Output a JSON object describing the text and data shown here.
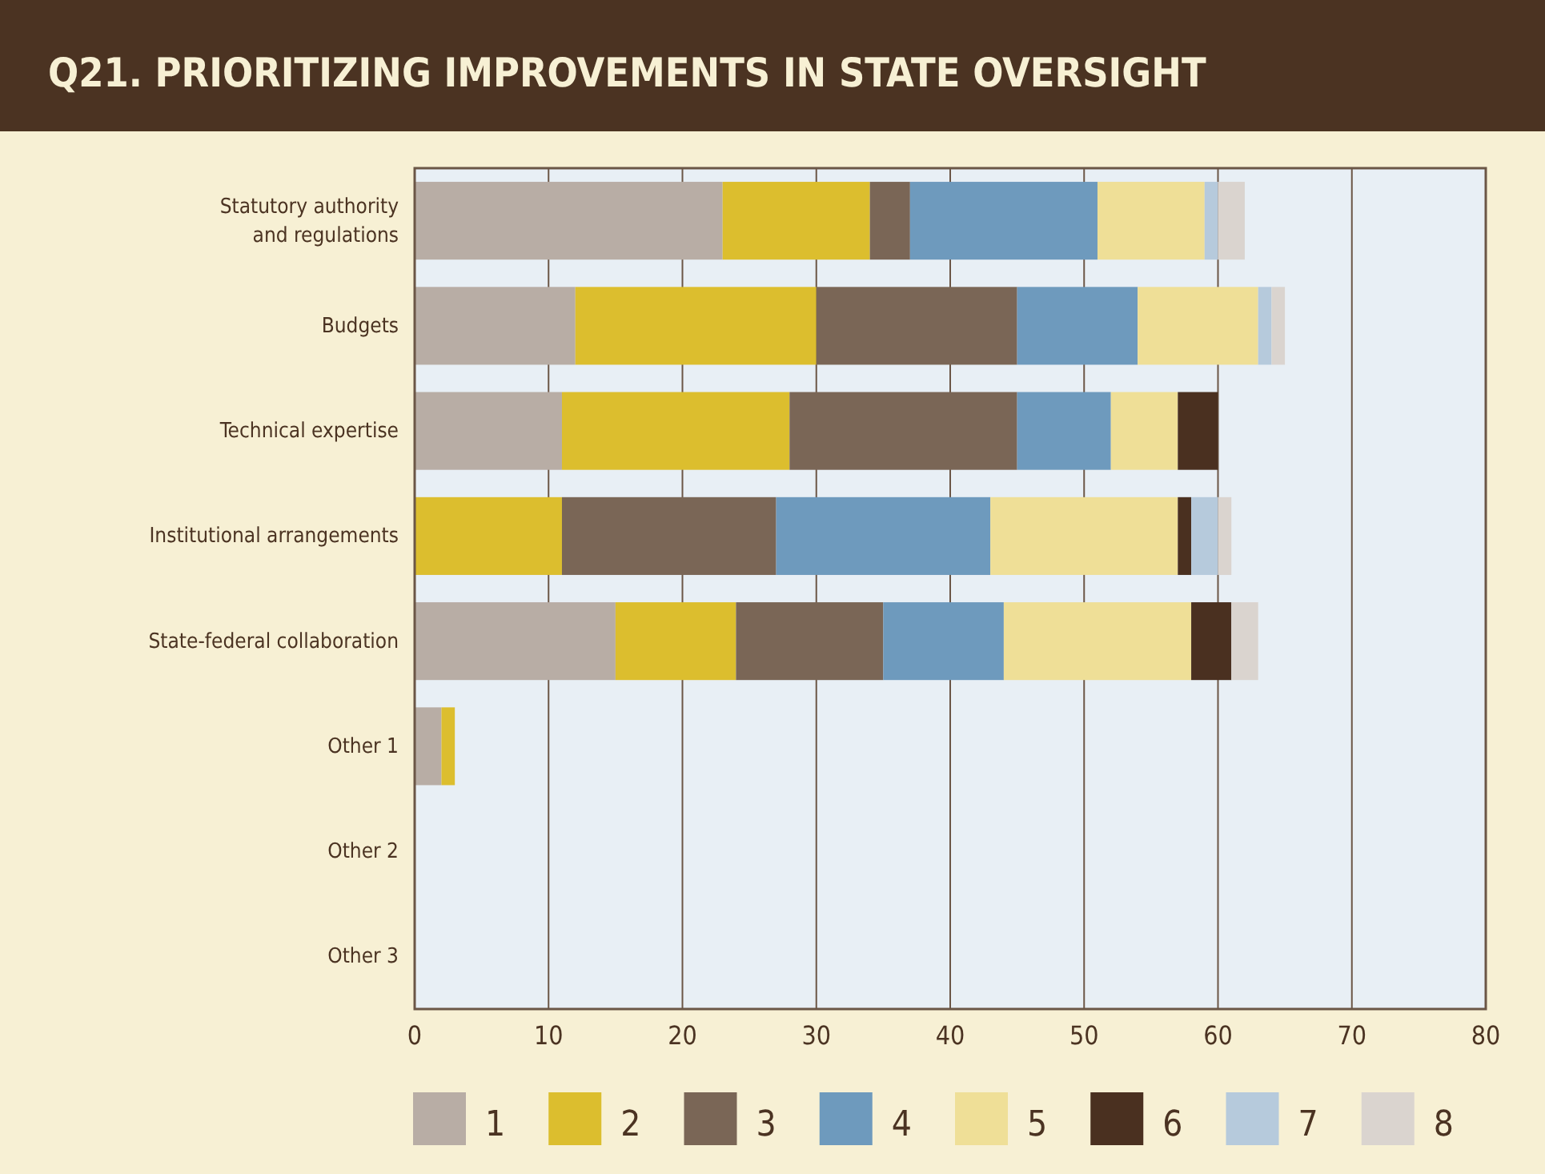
{
  "chart_data": {
    "type": "bar",
    "orientation": "horizontal",
    "stacked": true,
    "title": "Q21. PRIORITIZING IMPROVEMENTS IN STATE OVERSIGHT",
    "categories": [
      "Statutory authority\nand regulations",
      "Budgets",
      "Technical expertise",
      "Institutional arrangements",
      "State-federal collaboration",
      "Other 1",
      "Other 2",
      "Other 3"
    ],
    "series": [
      {
        "name": "1",
        "color": "#b8ada5",
        "values": [
          23,
          12,
          11,
          0,
          15,
          2,
          0,
          0
        ]
      },
      {
        "name": "2",
        "color": "#dcbe2e",
        "values": [
          11,
          18,
          17,
          11,
          9,
          1,
          0,
          0
        ]
      },
      {
        "name": "3",
        "color": "#7a6656",
        "values": [
          3,
          15,
          17,
          16,
          11,
          0,
          0,
          0
        ]
      },
      {
        "name": "4",
        "color": "#6e9abd",
        "values": [
          14,
          9,
          7,
          16,
          9,
          0,
          0,
          0
        ]
      },
      {
        "name": "5",
        "color": "#efdf97",
        "values": [
          8,
          9,
          5,
          14,
          14,
          0,
          0,
          0
        ]
      },
      {
        "name": "6",
        "color": "#4a3020",
        "values": [
          0,
          0,
          3,
          1,
          3,
          0,
          0,
          0
        ]
      },
      {
        "name": "7",
        "color": "#b6cadc",
        "values": [
          1,
          1,
          0,
          2,
          0,
          0,
          0,
          0
        ]
      },
      {
        "name": "8",
        "color": "#dad4cf",
        "values": [
          2,
          1,
          0,
          1,
          2,
          0,
          0,
          0
        ]
      }
    ],
    "xlim": [
      0,
      80
    ],
    "xticks": [
      0,
      10,
      20,
      30,
      40,
      50,
      60,
      70,
      80
    ],
    "grid": "x",
    "legend": "bottom"
  }
}
